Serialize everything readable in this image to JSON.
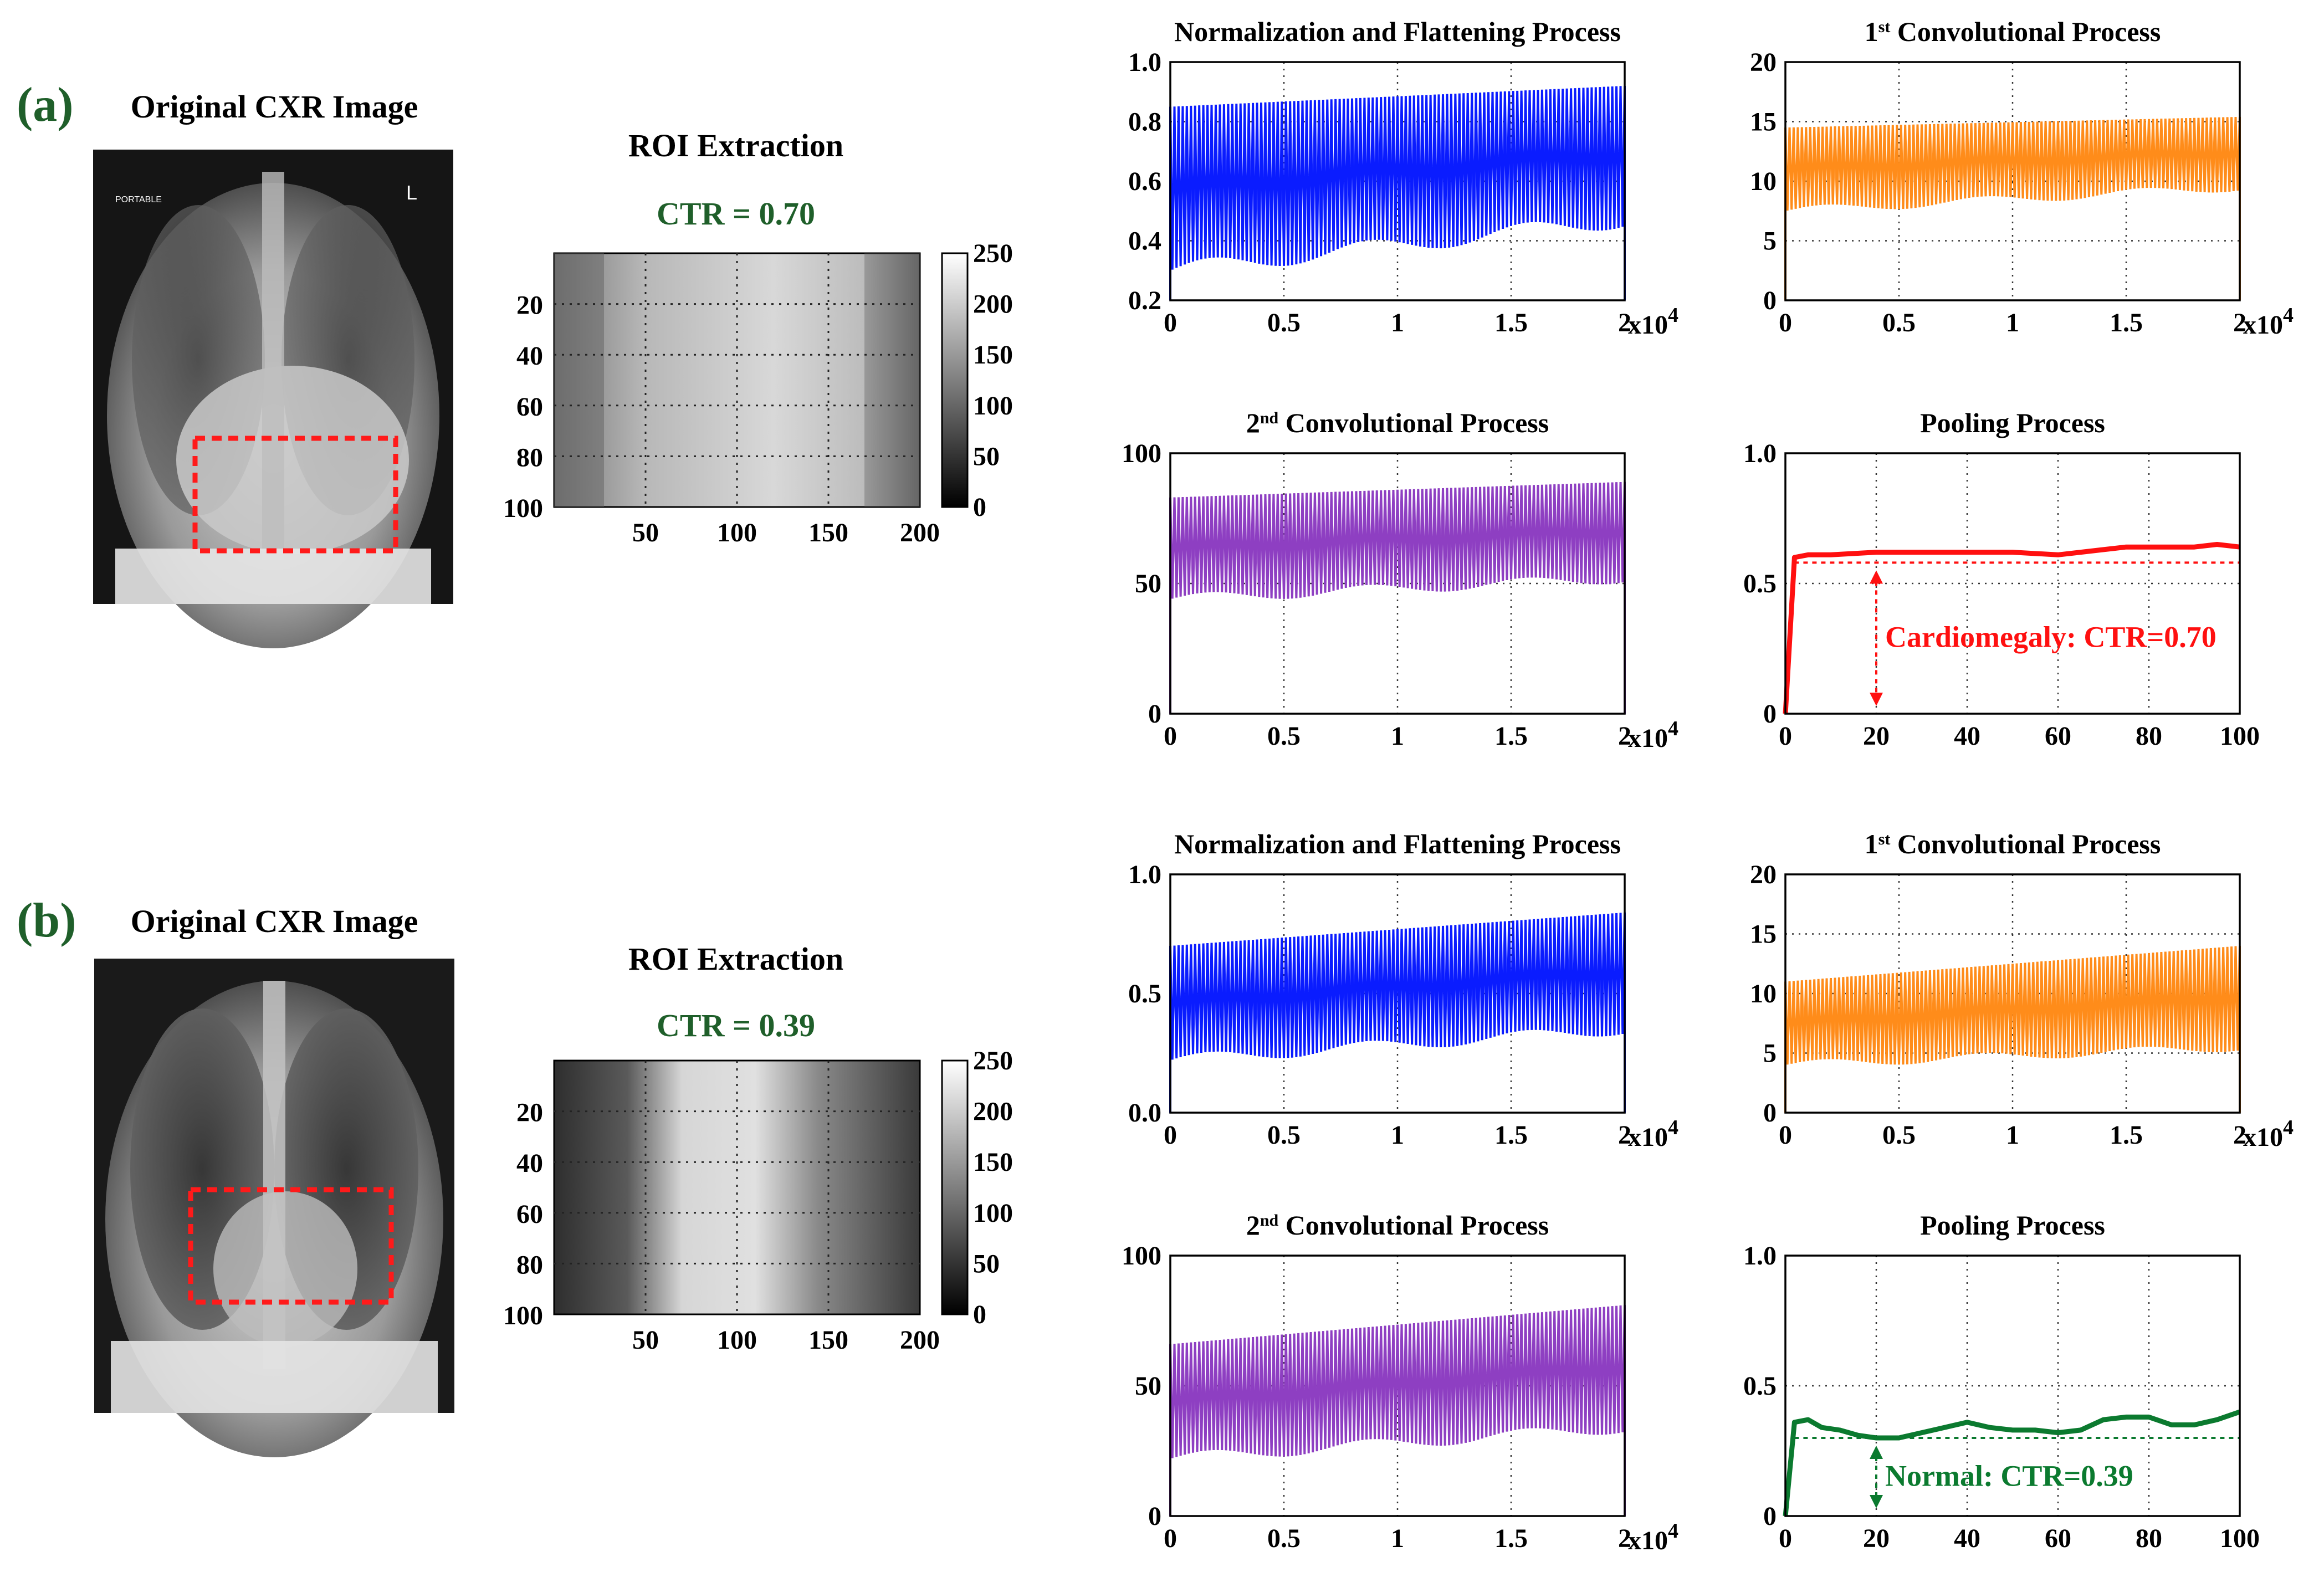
{
  "colors": {
    "blue": "#0a1cff",
    "orange": "#ff8c1a",
    "purple": "#8e3fc2",
    "red": "#ff1010",
    "green": "#0b7a2f",
    "panel_label": "#1f5f2a",
    "roi_box": "#ff1a1a"
  },
  "panels": [
    {
      "label": "(a)",
      "cxr": {
        "title": "Original CXR Image",
        "marker_left": "PORTABLE",
        "marker_right": "L",
        "variant": "enlarged"
      },
      "roi": {
        "title": "ROI Extraction",
        "ctr": "CTR = 0.70",
        "yticks": [
          "20",
          "40",
          "60",
          "80",
          "100"
        ],
        "xticks": [
          "50",
          "100",
          "150",
          "200"
        ],
        "cbar_ticks": [
          "250",
          "200",
          "150",
          "100",
          "50",
          "0"
        ],
        "cbar_range": [
          0,
          250
        ]
      },
      "charts": [
        {
          "type": "line",
          "title": "Normalization and Flattening Process",
          "title_sup": "",
          "title_main": "",
          "color": "blue",
          "xlim": [
            0,
            20000
          ],
          "ylim": [
            0.2,
            1.0
          ],
          "yticks": [
            "0.2",
            "0.4",
            "0.6",
            "0.8",
            "1.0"
          ],
          "xticks": [
            "0",
            "0.5",
            "1",
            "1.5",
            "2"
          ],
          "x_exponent": "x10",
          "x_exponent_power": "4",
          "series": [
            {
              "upper_start": 0.85,
              "upper_end": 0.92,
              "lower_start": 0.3,
              "lower_end": 0.47
            }
          ]
        },
        {
          "type": "line",
          "title": "",
          "title_sup_num": "1",
          "title_sup": "st",
          "title_main": " Convolutional Process",
          "color": "orange",
          "xlim": [
            0,
            20000
          ],
          "ylim": [
            0,
            20
          ],
          "yticks": [
            "0",
            "5",
            "10",
            "15",
            "20"
          ],
          "xticks": [
            "0",
            "0.5",
            "1",
            "1.5",
            "2"
          ],
          "x_exponent": "x10",
          "x_exponent_power": "4",
          "series": [
            {
              "upper_start": 14.5,
              "upper_end": 15.4,
              "lower_start": 7.5,
              "lower_end": 9.5
            }
          ]
        },
        {
          "type": "line",
          "title": "",
          "title_sup_num": "2",
          "title_sup": "nd",
          "title_main": " Convolutional Process",
          "color": "purple",
          "xlim": [
            0,
            20000
          ],
          "ylim": [
            0,
            100
          ],
          "yticks": [
            "0",
            "50",
            "100"
          ],
          "xticks": [
            "0",
            "0.5",
            "1",
            "1.5",
            "2"
          ],
          "x_exponent": "x10",
          "x_exponent_power": "4",
          "series": [
            {
              "upper_start": 83,
              "upper_end": 89,
              "lower_start": 44,
              "lower_end": 52
            }
          ]
        },
        {
          "type": "line",
          "title": "Pooling Process",
          "title_sup": "",
          "title_main": "",
          "color": "red",
          "xlim": [
            0,
            100
          ],
          "ylim": [
            0,
            1.0
          ],
          "yticks": [
            "0",
            "0.5",
            "1.0"
          ],
          "xticks": [
            "0",
            "20",
            "40",
            "60",
            "80",
            "100"
          ],
          "x_exponent": "",
          "x_exponent_power": "",
          "threshold": 0.58,
          "arrow_x": 20,
          "annotation": "Cardiomegaly: CTR=0.70",
          "x": [
            0,
            2,
            5,
            10,
            20,
            30,
            40,
            50,
            60,
            65,
            70,
            75,
            80,
            90,
            95,
            100
          ],
          "y": [
            0,
            0.6,
            0.61,
            0.61,
            0.62,
            0.62,
            0.62,
            0.62,
            0.61,
            0.62,
            0.63,
            0.64,
            0.64,
            0.64,
            0.65,
            0.64
          ]
        }
      ]
    },
    {
      "label": "(b)",
      "cxr": {
        "title": "Original CXR Image",
        "marker_left": "",
        "marker_right": "",
        "variant": "normal"
      },
      "roi": {
        "title": "ROI Extraction",
        "ctr": "CTR = 0.39",
        "yticks": [
          "20",
          "40",
          "60",
          "80",
          "100"
        ],
        "xticks": [
          "50",
          "100",
          "150",
          "200"
        ],
        "cbar_ticks": [
          "250",
          "200",
          "150",
          "100",
          "50",
          "0"
        ],
        "cbar_range": [
          0,
          250
        ]
      },
      "charts": [
        {
          "type": "line",
          "title": "Normalization and Flattening Process",
          "title_sup": "",
          "title_main": "",
          "color": "blue",
          "xlim": [
            0,
            20000
          ],
          "ylim": [
            0,
            1.0
          ],
          "yticks": [
            "0.0",
            "0.5",
            "1.0"
          ],
          "xticks": [
            "0",
            "0.5",
            "1",
            "1.5",
            "2"
          ],
          "x_exponent": "x10",
          "x_exponent_power": "4",
          "series": [
            {
              "upper_start": 0.7,
              "upper_end": 0.84,
              "lower_start": 0.22,
              "lower_end": 0.35
            }
          ]
        },
        {
          "type": "line",
          "title": "",
          "title_sup_num": "1",
          "title_sup": "st",
          "title_main": " Convolutional Process",
          "color": "orange",
          "xlim": [
            0,
            20000
          ],
          "ylim": [
            0,
            20
          ],
          "yticks": [
            "0",
            "5",
            "10",
            "15",
            "20"
          ],
          "xticks": [
            "0",
            "0.5",
            "1",
            "1.5",
            "2"
          ],
          "x_exponent": "x10",
          "x_exponent_power": "4",
          "series": [
            {
              "upper_start": 11,
              "upper_end": 14,
              "lower_start": 4,
              "lower_end": 5.5
            }
          ]
        },
        {
          "type": "line",
          "title": "",
          "title_sup_num": "2",
          "title_sup": "nd",
          "title_main": " Convolutional Process",
          "color": "purple",
          "xlim": [
            0,
            20000
          ],
          "ylim": [
            0,
            100
          ],
          "yticks": [
            "0",
            "50",
            "100"
          ],
          "xticks": [
            "0",
            "0.5",
            "1",
            "1.5",
            "2"
          ],
          "x_exponent": "x10",
          "x_exponent_power": "4",
          "series": [
            {
              "upper_start": 66,
              "upper_end": 81,
              "lower_start": 22,
              "lower_end": 34
            }
          ]
        },
        {
          "type": "line",
          "title": "Pooling Process",
          "title_sup": "",
          "title_main": "",
          "color": "green",
          "xlim": [
            0,
            100
          ],
          "ylim": [
            0,
            1.0
          ],
          "yticks": [
            "0",
            "0.5",
            "1.0"
          ],
          "xticks": [
            "0",
            "20",
            "40",
            "60",
            "80",
            "100"
          ],
          "x_exponent": "",
          "x_exponent_power": "",
          "threshold": 0.3,
          "arrow_x": 20,
          "annotation": "Normal: CTR=0.39",
          "x": [
            0,
            2,
            5,
            8,
            12,
            16,
            20,
            25,
            30,
            35,
            40,
            45,
            50,
            55,
            60,
            65,
            70,
            75,
            80,
            85,
            90,
            95,
            100
          ],
          "y": [
            0,
            0.36,
            0.37,
            0.34,
            0.33,
            0.31,
            0.3,
            0.3,
            0.32,
            0.34,
            0.36,
            0.34,
            0.33,
            0.33,
            0.32,
            0.33,
            0.37,
            0.38,
            0.38,
            0.35,
            0.35,
            0.37,
            0.4
          ]
        }
      ]
    }
  ]
}
